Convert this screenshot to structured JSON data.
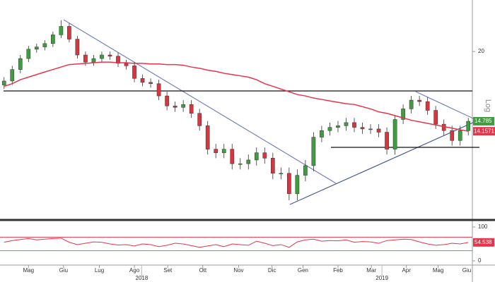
{
  "chart_data": [
    {
      "type": "candlestick",
      "log_scale": true,
      "y_scale_label": "Log",
      "xlim": [
        0,
        58
      ],
      "ylim": [
        9.7,
        25
      ],
      "yticks": [
        20
      ],
      "up_color": "#3f9d3f",
      "down_color": "#d9353f",
      "x": [
        0.5,
        1.5,
        2.5,
        3.5,
        4.5,
        5.5,
        6.5,
        7.5,
        8.5,
        9.5,
        10.5,
        11.5,
        12.5,
        13.5,
        14.5,
        15.5,
        16.5,
        17.5,
        18.5,
        19.5,
        20.5,
        21.5,
        22.5,
        23.5,
        24.5,
        25.5,
        26.5,
        27.5,
        28.5,
        29.5,
        30.5,
        31.5,
        32.5,
        33.5,
        34.5,
        35.5,
        36.5,
        37.5,
        38.5,
        39.5,
        40.5,
        41.5,
        42.5,
        43.5,
        44.5,
        45.5,
        46.5,
        47.5,
        48.5,
        49.5,
        50.5,
        51.5,
        52.5,
        53.5,
        54.5,
        55.5,
        56.5,
        57.5
      ],
      "open": [
        17.3,
        17.6,
        18.5,
        19.4,
        20.2,
        20.4,
        20.7,
        21.5,
        22.3,
        21.1,
        19.7,
        19.1,
        19.4,
        19.7,
        19.6,
        19.0,
        18.8,
        17.8,
        17.5,
        17.4,
        16.5,
        15.8,
        15.7,
        15.9,
        15.3,
        14.5,
        13.1,
        12.9,
        13.1,
        12.3,
        12.3,
        12.5,
        12.9,
        12.6,
        11.8,
        11.8,
        10.8,
        11.7,
        12.2,
        13.8,
        14.2,
        14.4,
        14.5,
        14.7,
        14.4,
        14.3,
        14.3,
        14.1,
        13.1,
        14.9,
        15.6,
        16.2,
        16.1,
        15.5,
        14.6,
        14.2,
        13.6,
        14.2
      ],
      "high": [
        17.9,
        18.8,
        19.7,
        20.5,
        20.7,
        21.0,
        21.8,
        22.9,
        22.6,
        21.4,
        20.0,
        19.7,
        20.0,
        20.0,
        19.9,
        19.3,
        19.1,
        18.1,
        17.8,
        17.7,
        16.8,
        16.1,
        16.2,
        16.2,
        15.6,
        14.8,
        13.4,
        13.4,
        13.4,
        12.6,
        12.8,
        13.2,
        13.2,
        12.9,
        12.1,
        12.1,
        12.0,
        12.5,
        14.1,
        14.5,
        14.7,
        14.8,
        15.0,
        15.0,
        14.7,
        14.6,
        14.6,
        14.4,
        15.2,
        15.9,
        16.5,
        16.5,
        16.4,
        15.8,
        14.9,
        14.5,
        14.5,
        15.0
      ],
      "low": [
        17.0,
        17.3,
        18.2,
        19.1,
        19.9,
        20.1,
        20.4,
        21.2,
        20.8,
        19.4,
        18.8,
        18.8,
        19.1,
        19.3,
        18.7,
        18.5,
        17.5,
        17.2,
        17.1,
        16.2,
        15.5,
        15.4,
        15.4,
        15.0,
        14.2,
        12.8,
        12.6,
        12.6,
        12.0,
        12.0,
        12.0,
        12.2,
        12.3,
        11.5,
        11.5,
        10.5,
        10.5,
        11.4,
        11.9,
        13.5,
        13.9,
        14.1,
        14.2,
        14.1,
        14.0,
        14.0,
        13.8,
        12.8,
        12.8,
        14.6,
        15.3,
        15.8,
        15.2,
        14.3,
        13.9,
        13.3,
        13.3,
        13.9
      ],
      "close": [
        17.6,
        18.5,
        19.4,
        20.2,
        20.4,
        20.7,
        21.5,
        22.3,
        21.1,
        19.7,
        19.1,
        19.4,
        19.7,
        19.6,
        19.0,
        18.8,
        17.8,
        17.5,
        17.4,
        16.5,
        15.8,
        15.7,
        15.9,
        15.3,
        14.5,
        13.1,
        12.9,
        13.1,
        12.3,
        12.3,
        12.5,
        12.9,
        12.6,
        11.8,
        11.8,
        10.8,
        11.7,
        12.2,
        13.8,
        14.2,
        14.4,
        14.5,
        14.7,
        14.4,
        14.3,
        14.3,
        14.1,
        13.1,
        14.9,
        15.6,
        16.2,
        16.1,
        15.5,
        14.6,
        14.2,
        13.6,
        14.2,
        14.785
      ],
      "ma": {
        "color": "#e8344a",
        "values": [
          17.2,
          17.4,
          17.7,
          17.9,
          18.1,
          18.3,
          18.5,
          18.7,
          18.9,
          18.95,
          19.0,
          19.05,
          19.1,
          19.1,
          19.05,
          19.05,
          19.0,
          19.0,
          18.95,
          18.95,
          18.9,
          18.9,
          18.85,
          18.7,
          18.6,
          18.45,
          18.35,
          18.2,
          18.1,
          18.0,
          17.9,
          17.7,
          17.4,
          17.2,
          17.0,
          16.8,
          16.6,
          16.5,
          16.35,
          16.25,
          16.15,
          16.05,
          15.95,
          15.9,
          15.75,
          15.6,
          15.4,
          15.3,
          15.15,
          15.0,
          14.85,
          14.75,
          14.65,
          14.55,
          14.45,
          14.35,
          14.25,
          14.1571
        ]
      }
    },
    {
      "type": "line",
      "xlim": [
        0,
        58
      ],
      "ylim": [
        0,
        100
      ],
      "yticks": [
        0,
        100
      ],
      "levels": [
        {
          "value": 70,
          "color": "#e8344a"
        },
        {
          "value": 30,
          "color": "#4caf50"
        }
      ],
      "color": "#e8344a",
      "values": [
        55,
        60,
        63,
        66,
        62,
        64,
        66,
        67,
        55,
        48,
        52,
        56,
        55,
        50,
        47,
        48,
        44,
        50,
        48,
        42,
        46,
        52,
        50,
        45,
        40,
        44,
        48,
        42,
        50,
        48,
        46,
        58,
        52,
        45,
        48,
        40,
        56,
        62,
        64,
        58,
        60,
        59,
        62,
        55,
        57,
        56,
        52,
        60,
        62,
        64,
        63,
        56,
        50,
        46,
        48,
        52,
        50,
        54.538
      ],
      "xticks": [
        {
          "value": 3.5,
          "label": "Mag"
        },
        {
          "value": 7.8,
          "label": "Giu"
        },
        {
          "value": 12.2,
          "label": "Lug"
        },
        {
          "value": 16.5,
          "label": "Ago"
        },
        {
          "value": 20.6,
          "label": "Set"
        },
        {
          "value": 24.9,
          "label": "Ott"
        },
        {
          "value": 29.3,
          "label": "Nov"
        },
        {
          "value": 33.4,
          "label": "Dic"
        },
        {
          "value": 37.2,
          "label": "Gen"
        },
        {
          "value": 41.5,
          "label": "Feb"
        },
        {
          "value": 45.6,
          "label": "Mar"
        },
        {
          "value": 49.9,
          "label": "Apr"
        },
        {
          "value": 53.8,
          "label": "Mag"
        },
        {
          "value": 58,
          "label": "Giu"
        }
      ],
      "year_ticks": [
        {
          "value": 17.4,
          "label": "2018"
        },
        {
          "value": 46.9,
          "label": "2019"
        }
      ]
    }
  ]
}
